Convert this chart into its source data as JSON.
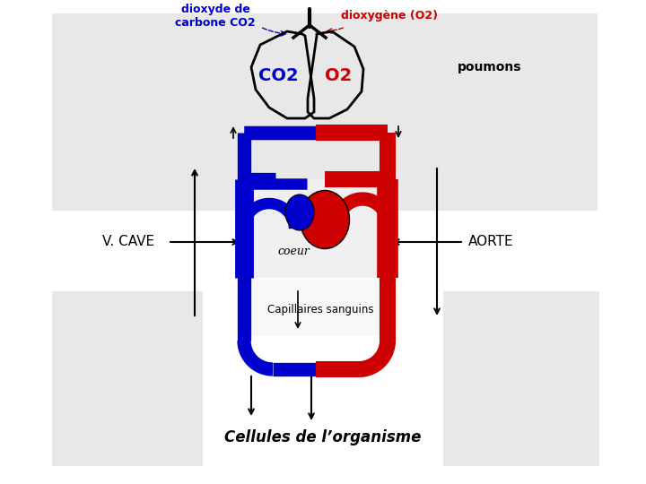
{
  "bg_color": "#e8e8e8",
  "white": "#ffffff",
  "blue": "#0000cc",
  "red": "#cc0000",
  "black": "#000000",
  "light_gray": "#e8e8e8",
  "title_bottom": "Cellules de l’organisme",
  "label_vcave": "V. CAVE",
  "label_aorte": "AORTE",
  "label_poumons": "poumons",
  "label_coeur": "coeur",
  "label_capillaires": "Capillaires sanguins",
  "label_co2_top": "dioxyde de\ncarbone CO2",
  "label_o2_top": "dioxygène (O2)",
  "label_co2_lung": "CO2",
  "label_o2_lung": "O2",
  "vessel_lw_blue": 11,
  "vessel_lw_red": 13
}
